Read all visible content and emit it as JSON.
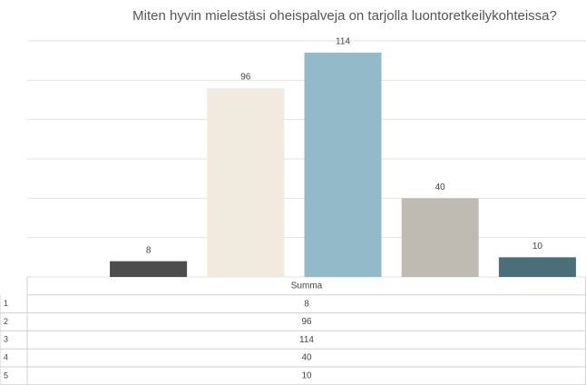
{
  "chart_data": {
    "type": "bar",
    "title": "Miten hyvin mielestäsi oheispalveja on tarjolla luontoretkeilykohteissa?",
    "categories": [
      "1",
      "2",
      "3",
      "4",
      "5"
    ],
    "series": [
      {
        "name": "Summa",
        "values": [
          8,
          96,
          114,
          40,
          10
        ],
        "colors": [
          "#4d4d4d",
          "#f1ebdf",
          "#93bac9",
          "#bfbbb3",
          "#4a6f78"
        ]
      }
    ],
    "ylim": [
      0,
      120
    ],
    "yticks": [
      0,
      20,
      40,
      60,
      80,
      100,
      120
    ],
    "grid": true
  }
}
